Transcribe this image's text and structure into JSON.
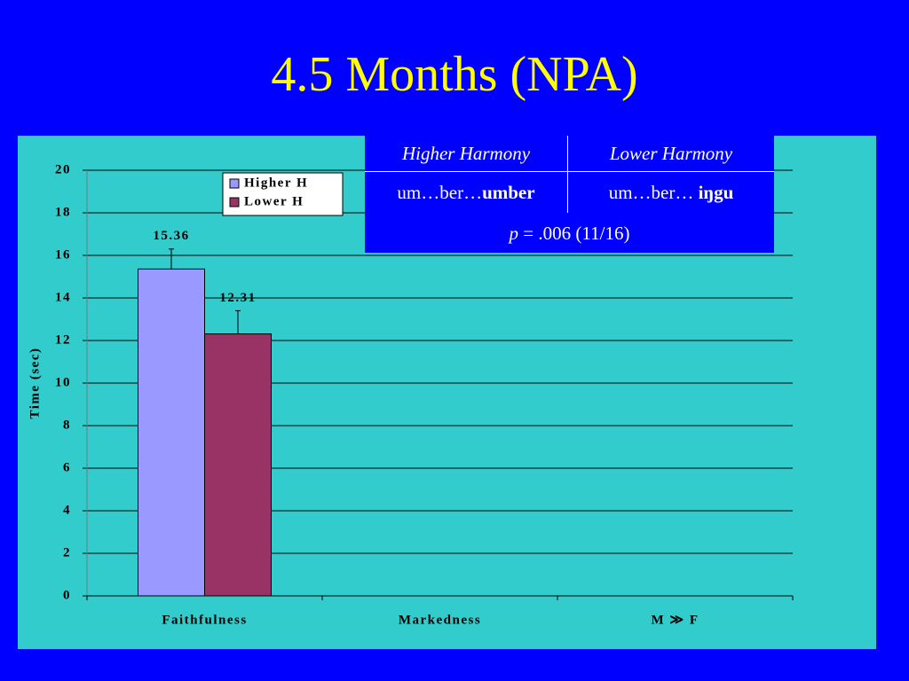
{
  "title": "4.5 Months (NPA)",
  "chart_data": {
    "type": "bar",
    "categories": [
      "Faithfulness",
      "Markedness",
      "M ≫ F"
    ],
    "y_label": "Time (sec)",
    "ylim": [
      0,
      20
    ],
    "yticks": [
      0,
      2,
      4,
      6,
      8,
      10,
      12,
      14,
      16,
      18,
      20
    ],
    "grid": true,
    "legend": "upper-left",
    "series": [
      {
        "name": "Higher H",
        "color": "#9999ff",
        "values": [
          15.36,
          null,
          null
        ],
        "errors": [
          0.94,
          null,
          null
        ]
      },
      {
        "name": "Lower H",
        "color": "#993366",
        "values": [
          12.31,
          null,
          null
        ],
        "errors": [
          1.09,
          null,
          null
        ]
      }
    ]
  },
  "table": {
    "header": [
      "Higher Harmony",
      "Lower Harmony"
    ],
    "row": [
      {
        "plain": "um…ber…",
        "bold": "umber"
      },
      {
        "plain": "um…ber… ",
        "bold": "iŋgu"
      }
    ],
    "note": {
      "italic": "p",
      "plain": " = .006 (11/16)"
    }
  }
}
